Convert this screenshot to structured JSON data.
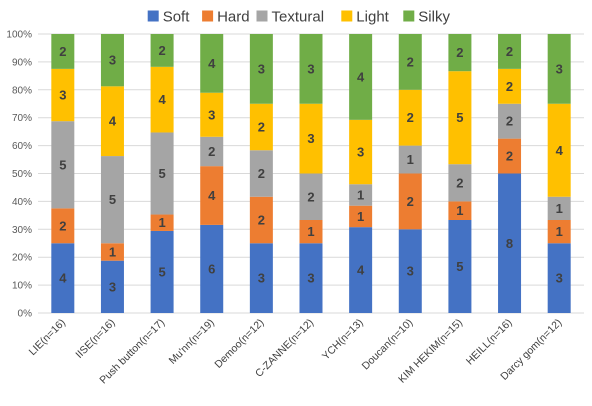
{
  "chart_data": {
    "type": "bar",
    "stacked": true,
    "normalized": true,
    "title": "",
    "xlabel": "",
    "ylabel": "",
    "ylim": [
      0,
      100
    ],
    "yticks": [
      "0%",
      "10%",
      "20%",
      "30%",
      "40%",
      "50%",
      "60%",
      "70%",
      "80%",
      "90%",
      "100%"
    ],
    "legend_position": "top",
    "grid": true,
    "categories": [
      "LIE(n=16)",
      "IISE(n=16)",
      "Push button(n=17)",
      "Mu'nn(n=19)",
      "Demoo(n=12)",
      "C-ZANNE(n=12)",
      "YCH(n=13)",
      "Doucan(n=10)",
      "KIM HEKIM(n=15)",
      "HEILL(n=16)",
      "Darcy gom(n=12)"
    ],
    "series": [
      {
        "name": "Soft",
        "color": "#4472C4",
        "values": [
          4,
          3,
          5,
          6,
          3,
          3,
          4,
          3,
          5,
          8,
          3
        ]
      },
      {
        "name": "Hard",
        "color": "#ED7D31",
        "values": [
          2,
          1,
          1,
          4,
          2,
          1,
          1,
          2,
          1,
          2,
          1
        ]
      },
      {
        "name": "Textural",
        "color": "#A5A5A5",
        "values": [
          5,
          5,
          5,
          2,
          2,
          2,
          1,
          1,
          2,
          2,
          1
        ]
      },
      {
        "name": "Light",
        "color": "#FFC000",
        "values": [
          3,
          4,
          4,
          3,
          2,
          3,
          3,
          2,
          5,
          2,
          4
        ]
      },
      {
        "name": "Silky",
        "color": "#70AD47",
        "values": [
          2,
          3,
          2,
          4,
          3,
          3,
          4,
          2,
          2,
          2,
          3
        ]
      }
    ]
  }
}
